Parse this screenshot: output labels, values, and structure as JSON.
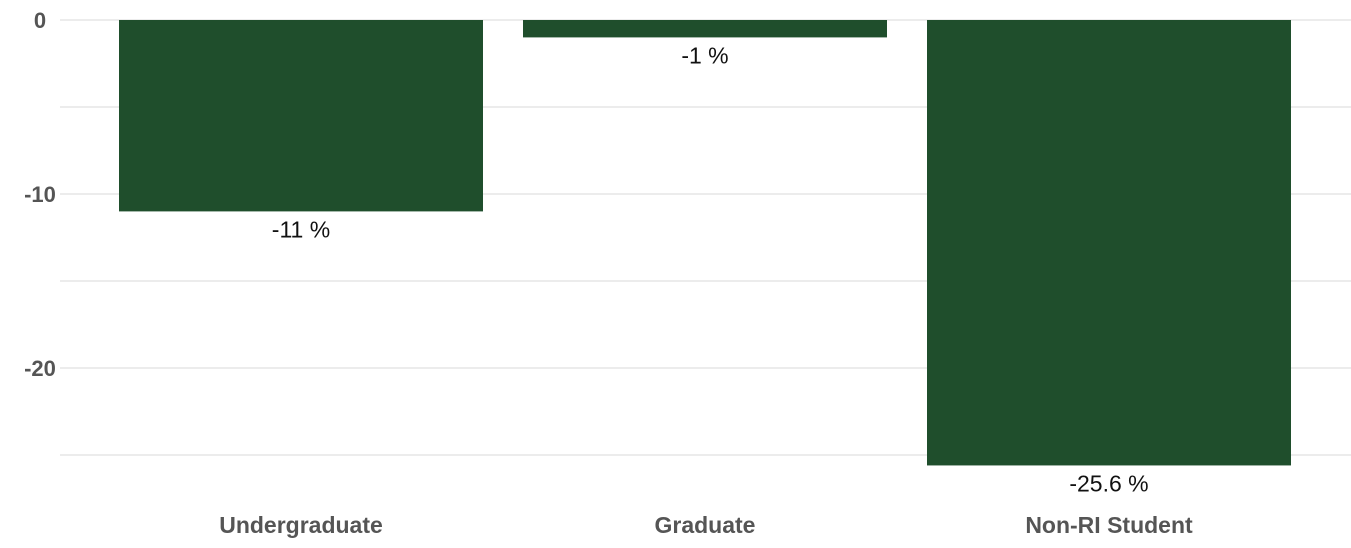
{
  "chart_data": {
    "type": "bar",
    "categories": [
      "Undergraduate",
      "Graduate",
      "Non-RI Student"
    ],
    "values": [
      -11,
      -1,
      -25.6
    ],
    "data_labels": [
      "-11 %",
      "-1 %",
      "-25.6 %"
    ],
    "y_ticks": [
      0,
      -10,
      -20
    ],
    "y_tick_labels": [
      "0",
      "-10",
      "-20"
    ],
    "ylim": [
      -26,
      0
    ],
    "grid": true,
    "bar_color": "#1f4e2c",
    "title": "",
    "xlabel": "",
    "ylabel": ""
  }
}
